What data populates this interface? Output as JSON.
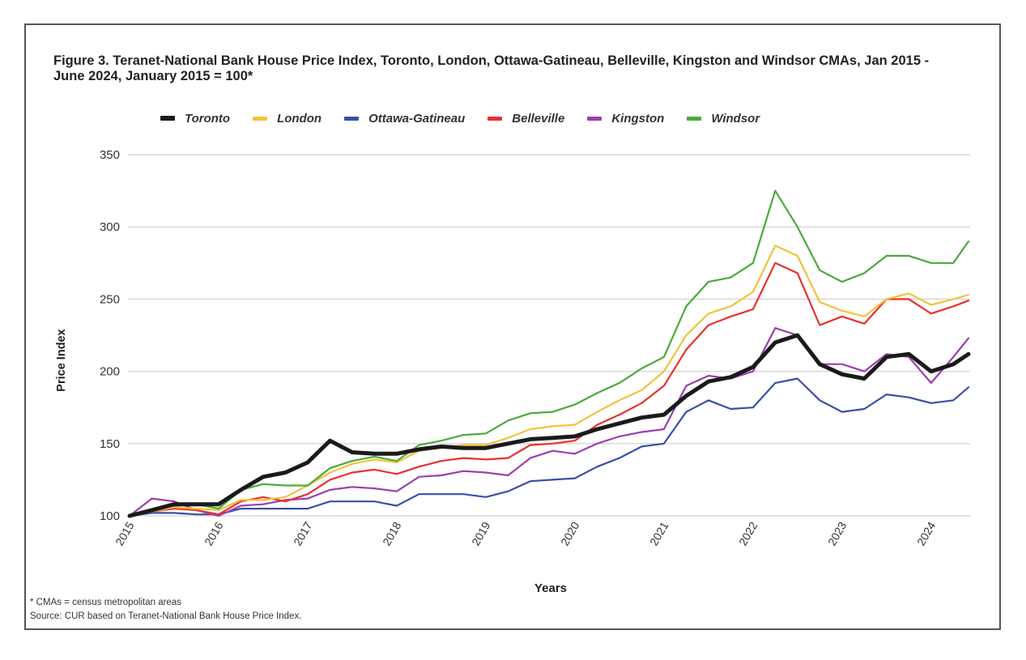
{
  "title": "Figure 3. Teranet-National Bank House Price Index, Toronto, London, Ottawa-Gatineau, Belleville, Kingston and Windsor CMAs, Jan 2015 - June 2024, January 2015 = 100*",
  "footnote": "* CMAs = census metropolitan areas",
  "source": "Source: CUR based on Teranet-National Bank House Price Index.",
  "chart_data": {
    "type": "line",
    "title": "Figure 3. Teranet-National Bank House Price Index, Toronto, London, Ottawa-Gatineau, Belleville, Kingston and Windsor CMAs, Jan 2015 - June 2024, January 2015 = 100*",
    "xlabel": "Years",
    "ylabel": "Price Index",
    "ylim": [
      100,
      350
    ],
    "yticks": [
      100,
      150,
      200,
      250,
      300,
      350
    ],
    "xlim": [
      2015.0,
      2024.42
    ],
    "xticks": [
      "2015",
      "2016",
      "2017",
      "2018",
      "2019",
      "2020",
      "2021",
      "2022",
      "2023",
      "2024"
    ],
    "grid": "horizontal",
    "legend_position": "top",
    "x": [
      2015.0,
      2015.25,
      2015.5,
      2015.75,
      2016.0,
      2016.25,
      2016.5,
      2016.75,
      2017.0,
      2017.25,
      2017.5,
      2017.75,
      2018.0,
      2018.25,
      2018.5,
      2018.75,
      2019.0,
      2019.25,
      2019.5,
      2019.75,
      2020.0,
      2020.25,
      2020.5,
      2020.75,
      2021.0,
      2021.25,
      2021.5,
      2021.75,
      2022.0,
      2022.25,
      2022.5,
      2022.75,
      2023.0,
      2023.25,
      2023.5,
      2023.75,
      2024.0,
      2024.25,
      2024.42
    ],
    "series": [
      {
        "name": "Toronto",
        "color": "#1a1a1a",
        "values": [
          100,
          104,
          108,
          108,
          108,
          118,
          127,
          130,
          137,
          152,
          144,
          143,
          143,
          146,
          148,
          147,
          147,
          150,
          153,
          154,
          155,
          160,
          164,
          168,
          170,
          183,
          193,
          196,
          203,
          220,
          225,
          205,
          198,
          195,
          210,
          212,
          200,
          205,
          212
        ]
      },
      {
        "name": "London",
        "color": "#f2c23c",
        "values": [
          100,
          103,
          106,
          105,
          104,
          111,
          111,
          113,
          121,
          130,
          136,
          139,
          137,
          145,
          147,
          149,
          149,
          154,
          160,
          162,
          163,
          172,
          180,
          187,
          200,
          225,
          240,
          245,
          255,
          287,
          280,
          248,
          242,
          238,
          250,
          254,
          246,
          250,
          253
        ]
      },
      {
        "name": "Ottawa-Gatineau",
        "color": "#3a4fa8",
        "values": [
          100,
          102,
          102,
          101,
          101,
          105,
          105,
          105,
          105,
          110,
          110,
          110,
          107,
          115,
          115,
          115,
          113,
          117,
          124,
          125,
          126,
          134,
          140,
          148,
          150,
          172,
          180,
          174,
          175,
          192,
          195,
          180,
          172,
          174,
          184,
          182,
          178,
          180,
          189
        ]
      },
      {
        "name": "Belleville",
        "color": "#e8312f",
        "values": [
          100,
          103,
          105,
          104,
          101,
          110,
          113,
          110,
          115,
          125,
          130,
          132,
          129,
          134,
          138,
          140,
          139,
          140,
          149,
          150,
          152,
          163,
          170,
          178,
          190,
          215,
          232,
          238,
          243,
          275,
          268,
          232,
          238,
          233,
          250,
          250,
          240,
          245,
          249
        ]
      },
      {
        "name": "Kingston",
        "color": "#9b3fb0",
        "values": [
          100,
          112,
          110,
          104,
          100,
          107,
          108,
          111,
          112,
          118,
          120,
          119,
          117,
          127,
          128,
          131,
          130,
          128,
          140,
          145,
          143,
          150,
          155,
          158,
          160,
          190,
          197,
          195,
          200,
          230,
          225,
          205,
          205,
          200,
          212,
          210,
          192,
          210,
          223
        ]
      },
      {
        "name": "Windsor",
        "color": "#4caa3c",
        "values": [
          100,
          104,
          107,
          108,
          105,
          118,
          122,
          121,
          121,
          133,
          138,
          141,
          138,
          149,
          152,
          156,
          157,
          166,
          171,
          172,
          177,
          185,
          192,
          202,
          210,
          245,
          262,
          265,
          275,
          325,
          300,
          270,
          262,
          268,
          280,
          280,
          275,
          275,
          290
        ]
      }
    ]
  }
}
